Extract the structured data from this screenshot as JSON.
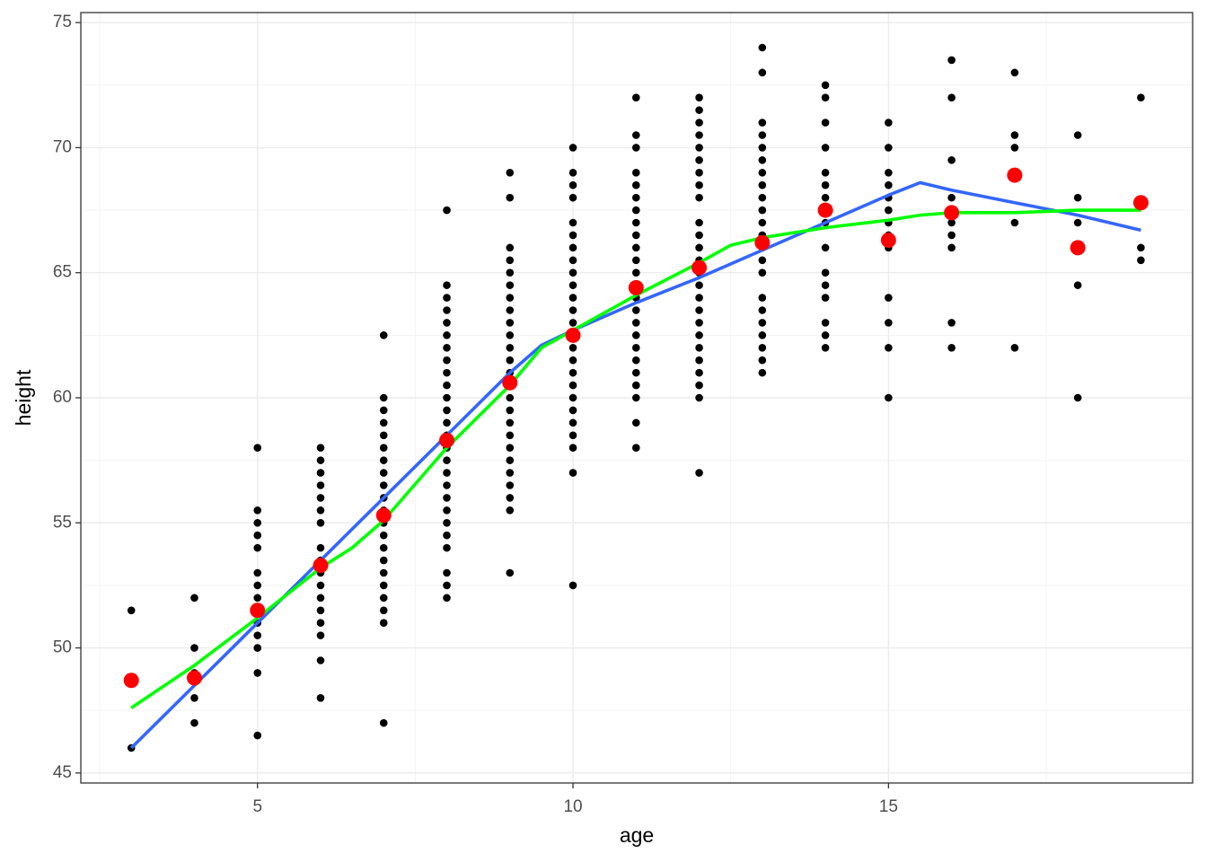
{
  "chart_data": {
    "type": "scatter",
    "x_label": "age",
    "y_label": "height",
    "xlim": [
      2.2,
      19.82
    ],
    "ylim": [
      44.6,
      75.4
    ],
    "xticks": [
      5,
      10,
      15
    ],
    "yticks": [
      45,
      50,
      55,
      60,
      65,
      70,
      75
    ],
    "minor_xticks": [
      2.5,
      7.5,
      12.5,
      17.5
    ],
    "minor_yticks": [
      47.5,
      52.5,
      57.5,
      62.5,
      67.5,
      72.5
    ],
    "grid": true,
    "point_color": "#000000",
    "point_groups": [
      {
        "x": 3,
        "y": [
          51.5,
          46
        ]
      },
      {
        "x": 4,
        "y": [
          52,
          50,
          49,
          48,
          47
        ]
      },
      {
        "x": 5,
        "y": [
          58,
          55.5,
          55,
          54.5,
          54,
          53,
          52.5,
          52,
          51.5,
          51,
          50.5,
          50,
          49,
          46.5
        ]
      },
      {
        "x": 6,
        "y": [
          58,
          57.5,
          57,
          56.5,
          56,
          55.5,
          55,
          54,
          53.5,
          53,
          52.5,
          52,
          51.5,
          51,
          50.5,
          49.5,
          48
        ]
      },
      {
        "x": 7,
        "y": [
          62.5,
          60,
          59.5,
          59,
          58.5,
          58,
          57.5,
          57,
          56.5,
          56,
          55.5,
          55,
          54.5,
          54,
          53.5,
          53,
          52.5,
          52,
          51.5,
          51,
          47
        ]
      },
      {
        "x": 8,
        "y": [
          67.5,
          64.5,
          64,
          63.5,
          63,
          62.5,
          62,
          61.5,
          61,
          60.5,
          60,
          59.5,
          59,
          58.5,
          58,
          57.5,
          57,
          56.5,
          56,
          55.5,
          55,
          54.5,
          54,
          53,
          52.5,
          52
        ]
      },
      {
        "x": 9,
        "y": [
          69,
          68,
          66,
          65.5,
          65,
          64.5,
          64,
          63.5,
          63,
          62.5,
          62,
          61.5,
          61,
          60.5,
          60,
          59.5,
          59,
          58.5,
          58,
          57.5,
          57,
          56.5,
          56,
          55.5,
          53
        ]
      },
      {
        "x": 10,
        "y": [
          70,
          69,
          68.5,
          68,
          67,
          66.5,
          66,
          65.5,
          65,
          64.5,
          64,
          63.5,
          63,
          62.5,
          62,
          61.5,
          61,
          60.5,
          60,
          59.5,
          59,
          58.5,
          58,
          57,
          52.5
        ]
      },
      {
        "x": 11,
        "y": [
          72,
          70.5,
          70,
          69,
          68.5,
          68,
          67.5,
          67,
          66.5,
          66,
          65.5,
          65,
          64.5,
          64,
          63.5,
          63,
          62.5,
          62,
          61.5,
          61,
          60.5,
          60,
          59,
          58
        ]
      },
      {
        "x": 12,
        "y": [
          72,
          71.5,
          71,
          70.5,
          70,
          69.5,
          69,
          68.5,
          68,
          67,
          66.5,
          66,
          65.5,
          65,
          64.5,
          64,
          63.5,
          63,
          62.5,
          62,
          61.5,
          61,
          60.5,
          60,
          57
        ]
      },
      {
        "x": 13,
        "y": [
          74,
          73,
          71,
          70.5,
          70,
          69.5,
          69,
          68.5,
          68,
          67.5,
          67,
          66.5,
          66,
          65.5,
          65,
          64,
          63.5,
          63,
          62.5,
          62,
          61.5,
          61
        ]
      },
      {
        "x": 14,
        "y": [
          72.5,
          72,
          71,
          70,
          69,
          68.5,
          68,
          67.5,
          67,
          66,
          65,
          64.5,
          64,
          63,
          62.5,
          62
        ]
      },
      {
        "x": 15,
        "y": [
          71,
          70,
          69,
          68.5,
          68,
          67.5,
          67,
          66.5,
          66,
          64,
          63,
          62,
          60
        ]
      },
      {
        "x": 16,
        "y": [
          73.5,
          72,
          69.5,
          68,
          67.5,
          67,
          66.5,
          66,
          63,
          62
        ]
      },
      {
        "x": 17,
        "y": [
          73,
          70.5,
          70,
          67,
          62
        ]
      },
      {
        "x": 18,
        "y": [
          70.5,
          68,
          67,
          64.5,
          60
        ]
      },
      {
        "x": 19,
        "y": [
          72,
          66,
          65.5
        ]
      }
    ],
    "means": {
      "color": "#ff0000",
      "x": [
        3,
        4,
        5,
        6,
        7,
        8,
        9,
        10,
        11,
        12,
        13,
        14,
        15,
        16,
        17,
        18,
        19
      ],
      "y": [
        48.7,
        48.8,
        51.5,
        53.3,
        55.3,
        58.3,
        60.6,
        62.5,
        64.4,
        65.2,
        66.2,
        67.5,
        66.3,
        67.4,
        68.9,
        66.0,
        67.8
      ]
    },
    "lines": [
      {
        "color": "#3366ff",
        "x": [
          3,
          4,
          5,
          6,
          7,
          8,
          9,
          9.5,
          10,
          11,
          12,
          13,
          14,
          15,
          15.5,
          16,
          17,
          18,
          19
        ],
        "y": [
          46.0,
          48.5,
          51.0,
          53.5,
          56.0,
          58.5,
          61.0,
          62.1,
          62.7,
          63.8,
          64.8,
          65.9,
          67.0,
          68.1,
          68.6,
          68.3,
          67.8,
          67.3,
          66.7
        ]
      },
      {
        "color": "#00ff00",
        "x": [
          3,
          4,
          5,
          6,
          6.5,
          7,
          8,
          9,
          9.5,
          10,
          11,
          12,
          12.5,
          13,
          14,
          15,
          15.5,
          16,
          17,
          18,
          19
        ],
        "y": [
          47.6,
          49.3,
          51.2,
          53.2,
          54.0,
          55.1,
          58.0,
          60.5,
          62.0,
          62.7,
          64.1,
          65.4,
          66.1,
          66.4,
          66.8,
          67.1,
          67.3,
          67.4,
          67.4,
          67.5,
          67.5
        ]
      }
    ]
  }
}
